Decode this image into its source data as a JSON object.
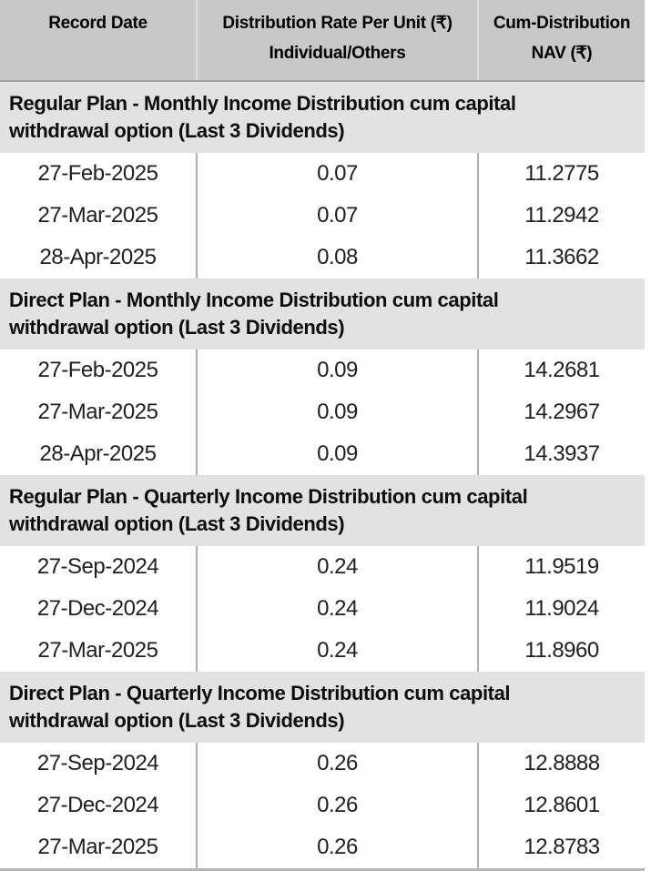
{
  "table": {
    "header": {
      "record_date": "Record Date",
      "rate_line1": "Distribution Rate Per Unit (₹)",
      "rate_line2": "Individual/Others",
      "nav_line1": "Cum-Distribution",
      "nav_line2": "NAV (₹)"
    },
    "sections": [
      {
        "title_lines": [
          "Regular Plan - Monthly Income Distribution cum capital",
          "withdrawal option (Last 3 Dividends)"
        ],
        "rows": [
          {
            "date": "27-Feb-2025",
            "rate": "0.07",
            "nav": "11.2775"
          },
          {
            "date": "27-Mar-2025",
            "rate": "0.07",
            "nav": "11.2942"
          },
          {
            "date": "28-Apr-2025",
            "rate": "0.08",
            "nav": "11.3662"
          }
        ]
      },
      {
        "title_lines": [
          "Direct Plan - Monthly Income Distribution cum capital",
          "withdrawal option (Last 3 Dividends)"
        ],
        "rows": [
          {
            "date": "27-Feb-2025",
            "rate": "0.09",
            "nav": "14.2681"
          },
          {
            "date": "27-Mar-2025",
            "rate": "0.09",
            "nav": "14.2967"
          },
          {
            "date": "28-Apr-2025",
            "rate": "0.09",
            "nav": "14.3937"
          }
        ]
      },
      {
        "title_lines": [
          "Regular Plan - Quarterly Income Distribution cum capital",
          "withdrawal option (Last 3 Dividends)"
        ],
        "rows": [
          {
            "date": "27-Sep-2024",
            "rate": "0.24",
            "nav": "11.9519"
          },
          {
            "date": "27-Dec-2024",
            "rate": "0.24",
            "nav": "11.9024"
          },
          {
            "date": "27-Mar-2025",
            "rate": "0.24",
            "nav": "11.8960"
          }
        ]
      },
      {
        "title_lines": [
          "Direct Plan - Quarterly Income Distribution cum capital",
          "withdrawal option (Last 3 Dividends)"
        ],
        "rows": [
          {
            "date": "27-Sep-2024",
            "rate": "0.26",
            "nav": "12.8888"
          },
          {
            "date": "27-Dec-2024",
            "rate": "0.26",
            "nav": "12.8601"
          },
          {
            "date": "27-Mar-2025",
            "rate": "0.26",
            "nav": "12.8783"
          }
        ]
      }
    ]
  },
  "colors": {
    "header_bg": "#c8c8c8",
    "section_bg": "#e2e2e2",
    "separator": "#b0b0b0",
    "header_separator": "#dedede",
    "bottom_border": "#b6b6b6",
    "text": "#000000"
  }
}
